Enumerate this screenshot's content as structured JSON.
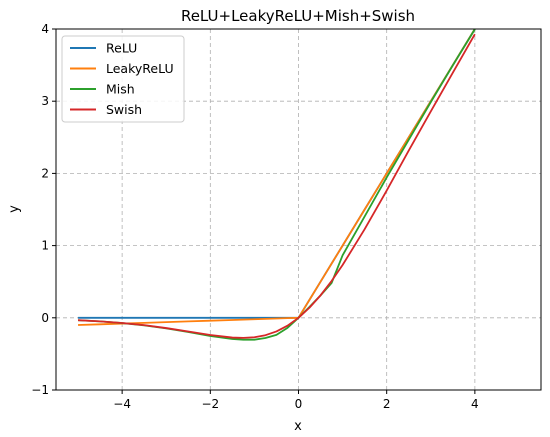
{
  "chart_data": {
    "type": "line",
    "title": "ReLU+LeakyReLU+Mish+Swish",
    "xlabel": "x",
    "ylabel": "y",
    "xlim": [
      -5.5,
      5.5
    ],
    "ylim": [
      -1,
      4
    ],
    "xticks": [
      -4,
      -2,
      0,
      2,
      4
    ],
    "xtick_labels": [
      "−4",
      "−2",
      "0",
      "2",
      "4"
    ],
    "yticks": [
      -1,
      0,
      1,
      2,
      3,
      4
    ],
    "ytick_labels": [
      "−1",
      "0",
      "1",
      "2",
      "3",
      "4"
    ],
    "grid": true,
    "legend_position": "top-left",
    "x": [
      -5,
      -4.5,
      -4,
      -3.5,
      -3,
      -2.5,
      -2,
      -1.5,
      -1.25,
      -1,
      -0.75,
      -0.5,
      -0.25,
      0,
      0.25,
      0.5,
      0.75,
      1,
      1.5,
      2,
      2.5,
      3,
      3.5,
      4
    ],
    "series": [
      {
        "name": "ReLU",
        "color": "#1f77b4",
        "values": [
          0,
          0,
          0,
          0,
          0,
          0,
          0,
          0,
          0,
          0,
          0,
          0,
          0,
          0,
          0.25,
          0.5,
          0.75,
          1,
          1.5,
          2,
          2.5,
          3,
          3.5,
          4
        ]
      },
      {
        "name": "LeakyReLU",
        "color": "#ff7f0e",
        "values": [
          -0.1,
          -0.09,
          -0.08,
          -0.07,
          -0.06,
          -0.05,
          -0.04,
          -0.03,
          -0.025,
          -0.02,
          -0.015,
          -0.01,
          -0.005,
          0,
          0.25,
          0.5,
          0.75,
          1,
          1.5,
          2,
          2.5,
          3,
          3.5,
          4
        ]
      },
      {
        "name": "Mish",
        "color": "#2ca02c",
        "values": [
          -0.034,
          -0.05,
          -0.073,
          -0.105,
          -0.146,
          -0.196,
          -0.252,
          -0.293,
          -0.303,
          -0.303,
          -0.28,
          -0.236,
          -0.139,
          0,
          0.151,
          0.311,
          0.482,
          0.865,
          1.404,
          1.944,
          2.466,
          2.987,
          3.497,
          3.997
        ]
      },
      {
        "name": "Swish",
        "color": "#d62728",
        "values": [
          -0.033,
          -0.049,
          -0.072,
          -0.102,
          -0.142,
          -0.19,
          -0.238,
          -0.274,
          -0.278,
          -0.269,
          -0.241,
          -0.189,
          -0.109,
          0,
          0.141,
          0.311,
          0.509,
          0.731,
          1.227,
          1.762,
          2.317,
          2.858,
          3.395,
          3.928
        ]
      }
    ]
  }
}
